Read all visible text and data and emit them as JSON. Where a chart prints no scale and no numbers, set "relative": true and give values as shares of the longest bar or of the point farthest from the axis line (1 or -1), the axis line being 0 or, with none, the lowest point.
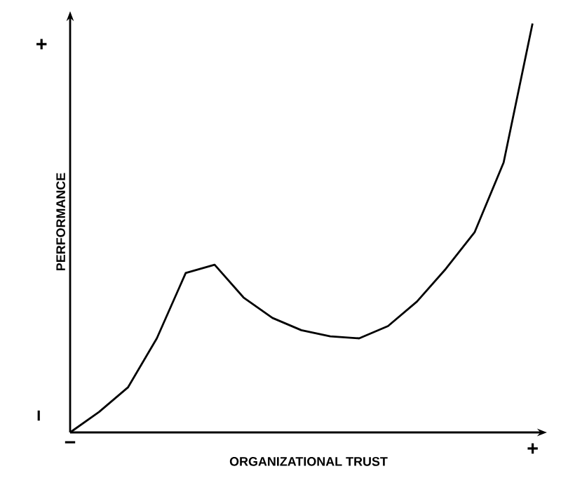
{
  "chart_data": {
    "type": "line",
    "relative": true,
    "xlabel": "ORGANIZATIONAL TRUST",
    "ylabel": "PERFORMANCE",
    "categories": [
      null,
      null,
      null,
      null,
      null,
      null,
      null,
      null,
      null,
      null,
      null,
      null,
      null,
      null,
      null,
      null,
      null
    ],
    "annotations": [
      "+",
      "−",
      "−",
      "+"
    ],
    "series": [
      {
        "color": "#000000",
        "values": [
          0,
          0.05,
          0.11,
          0.23,
          0.39,
          0.41,
          0.33,
          0.28,
          0.25,
          0.235,
          0.23,
          0.26,
          0.32,
          0.4,
          0.49,
          0.66,
          1.0
        ]
      }
    ],
    "marker": "none",
    "line_style": "solid"
  }
}
